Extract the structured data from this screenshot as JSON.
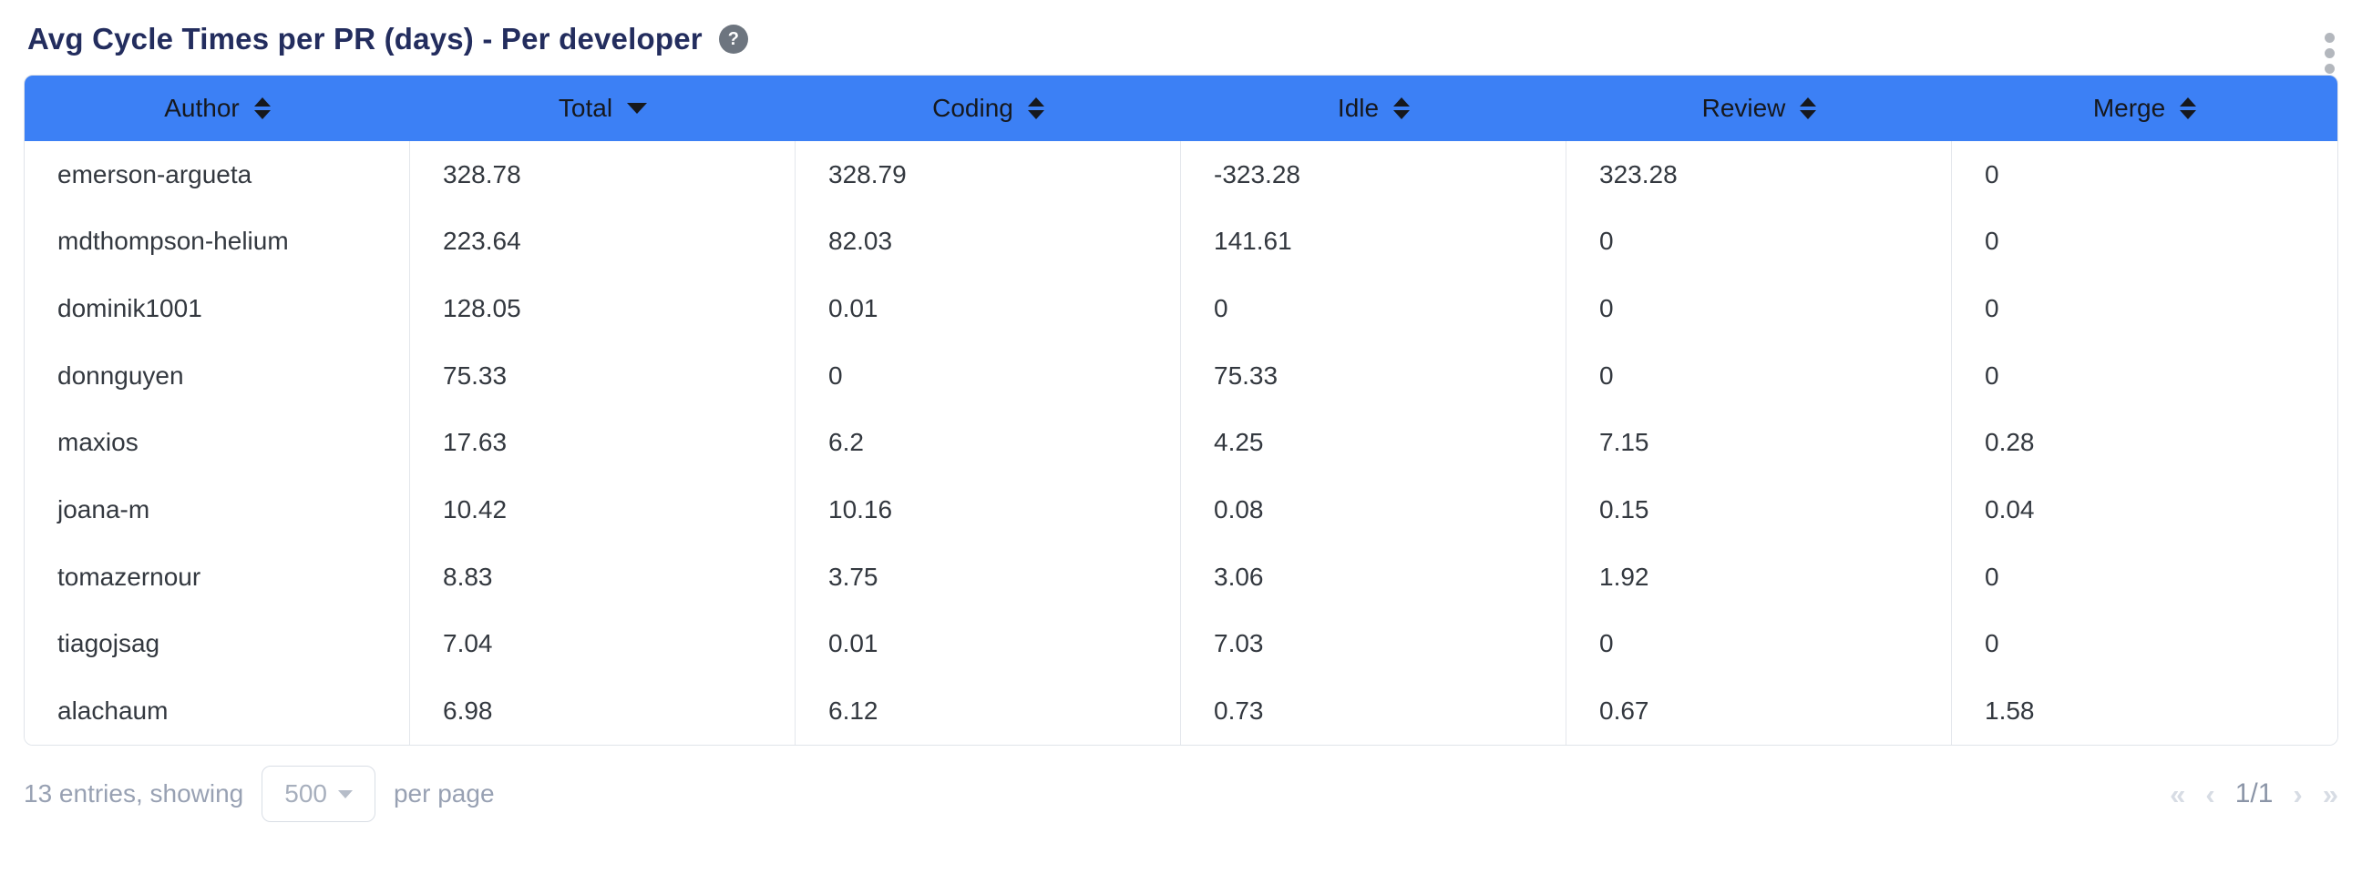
{
  "widget": {
    "title": "Avg Cycle Times per PR (days) - Per developer",
    "help_icon": "?",
    "menu_icon": "kebab-vertical-dots"
  },
  "table": {
    "columns": [
      {
        "label": "Author",
        "sort": "both"
      },
      {
        "label": "Total",
        "sort": "desc"
      },
      {
        "label": "Coding",
        "sort": "both"
      },
      {
        "label": "Idle",
        "sort": "both"
      },
      {
        "label": "Review",
        "sort": "both"
      },
      {
        "label": "Merge",
        "sort": "both"
      }
    ],
    "rows": [
      {
        "author": "emerson-argueta",
        "total": "328.78",
        "coding": "328.79",
        "idle": "-323.28",
        "review": "323.28",
        "merge": "0"
      },
      {
        "author": "mdthompson-helium",
        "total": "223.64",
        "coding": "82.03",
        "idle": "141.61",
        "review": "0",
        "merge": "0"
      },
      {
        "author": "dominik1001",
        "total": "128.05",
        "coding": "0.01",
        "idle": "0",
        "review": "0",
        "merge": "0"
      },
      {
        "author": "donnguyen",
        "total": "75.33",
        "coding": "0",
        "idle": "75.33",
        "review": "0",
        "merge": "0"
      },
      {
        "author": "maxios",
        "total": "17.63",
        "coding": "6.2",
        "idle": "4.25",
        "review": "7.15",
        "merge": "0.28"
      },
      {
        "author": "joana-m",
        "total": "10.42",
        "coding": "10.16",
        "idle": "0.08",
        "review": "0.15",
        "merge": "0.04"
      },
      {
        "author": "tomazernour",
        "total": "8.83",
        "coding": "3.75",
        "idle": "3.06",
        "review": "1.92",
        "merge": "0"
      },
      {
        "author": "tiagojsag",
        "total": "7.04",
        "coding": "0.01",
        "idle": "7.03",
        "review": "0",
        "merge": "0"
      },
      {
        "author": "alachaum",
        "total": "6.98",
        "coding": "6.12",
        "idle": "0.73",
        "review": "0.67",
        "merge": "1.58"
      }
    ]
  },
  "footer": {
    "entries_text": "13 entries, showing",
    "page_size_value": "500",
    "per_page_text": "per page",
    "pagination": {
      "first": "«",
      "prev": "‹",
      "current": "1/1",
      "next": "›",
      "last": "»"
    }
  },
  "colors": {
    "header_bg": "#3c80f5",
    "title_text": "#232d5e",
    "cell_text": "#33383f",
    "muted_text": "#98a1b3",
    "divider": "#e4e7ec",
    "help_icon_bg": "#6d757f"
  }
}
